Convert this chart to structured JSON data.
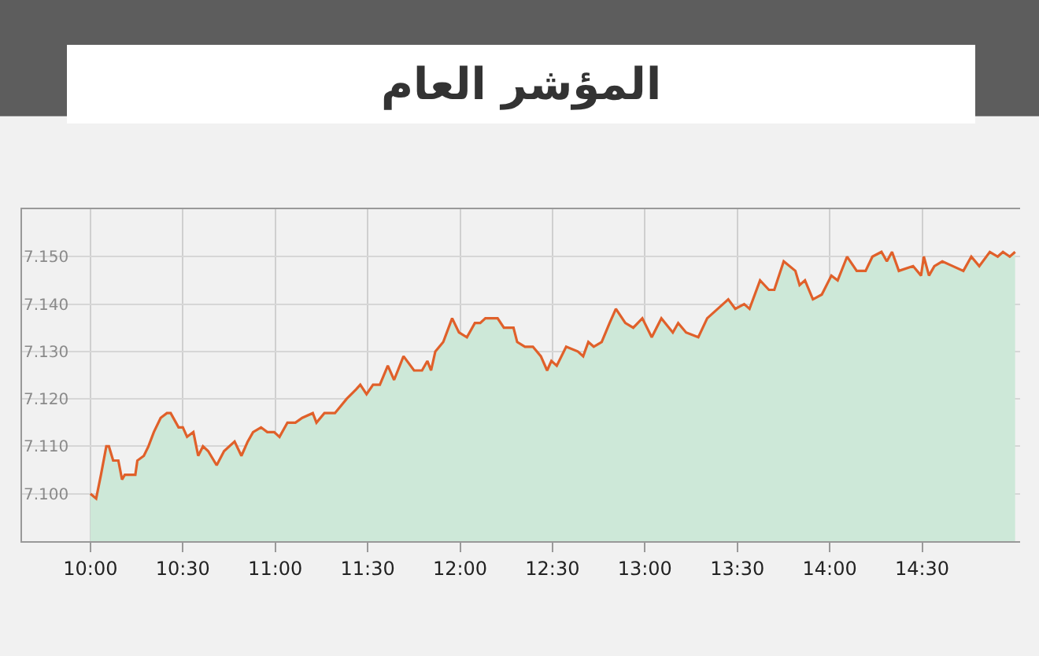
{
  "chart_data": {
    "type": "area",
    "title": "المؤشر العام",
    "x": [
      10.0,
      10.031,
      10.057,
      10.086,
      10.1,
      10.123,
      10.151,
      10.171,
      10.186,
      10.223,
      10.243,
      10.254,
      10.289,
      10.314,
      10.343,
      10.38,
      10.414,
      10.434,
      10.477,
      10.5,
      10.523,
      10.557,
      10.583,
      10.609,
      10.637,
      10.683,
      10.723,
      10.78,
      10.817,
      10.851,
      10.88,
      10.923,
      10.957,
      10.994,
      11.023,
      11.066,
      11.109,
      11.146,
      11.203,
      11.223,
      11.266,
      11.323,
      11.386,
      11.437,
      11.46,
      11.494,
      11.529,
      11.566,
      11.609,
      11.643,
      11.694,
      11.751,
      11.794,
      11.823,
      11.843,
      11.866,
      11.909,
      11.957,
      11.994,
      12.037,
      12.08,
      12.109,
      12.137,
      12.166,
      12.203,
      12.237,
      12.289,
      12.309,
      12.351,
      12.394,
      12.437,
      12.471,
      12.494,
      12.523,
      12.574,
      12.637,
      12.666,
      12.694,
      12.723,
      12.766,
      12.809,
      12.843,
      12.894,
      12.937,
      12.986,
      13.037,
      13.089,
      13.151,
      13.18,
      13.223,
      13.289,
      13.337,
      13.394,
      13.451,
      13.489,
      13.537,
      13.566,
      13.623,
      13.671,
      13.7,
      13.751,
      13.814,
      13.837,
      13.866,
      13.909,
      13.957,
      14.009,
      14.043,
      14.094,
      14.146,
      14.194,
      14.231,
      14.28,
      14.309,
      14.337,
      14.374,
      14.451,
      14.494,
      14.509,
      14.537,
      14.566,
      14.609,
      14.666,
      14.723,
      14.766,
      14.809,
      14.866,
      14.909,
      14.937,
      14.974,
      15.003
    ],
    "series": [
      {
        "color": "#e0602a",
        "values": [
          7100,
          7099,
          7104,
          7110,
          7110,
          7107,
          7107,
          7103,
          7104,
          7104,
          7104,
          7107,
          7108,
          7110,
          7113,
          7116,
          7117,
          7117,
          7114,
          7114,
          7112,
          7113,
          7108,
          7110,
          7109,
          7106,
          7109,
          7111,
          7108,
          7111,
          7113,
          7114,
          7113,
          7113,
          7112,
          7115,
          7115,
          7116,
          7117,
          7115,
          7117,
          7117,
          7120,
          7122,
          7123,
          7121,
          7123,
          7123,
          7127,
          7124,
          7129,
          7126,
          7126,
          7128,
          7126,
          7130,
          7132,
          7137,
          7134,
          7133,
          7136,
          7136,
          7137,
          7137,
          7137,
          7135,
          7135,
          7132,
          7131,
          7131,
          7129,
          7126,
          7128,
          7127,
          7131,
          7130,
          7129,
          7132,
          7131,
          7132,
          7136,
          7139,
          7136,
          7135,
          7137,
          7133,
          7137,
          7134,
          7136,
          7134,
          7133,
          7137,
          7139,
          7141,
          7139,
          7140,
          7139,
          7145,
          7143,
          7143,
          7149,
          7147,
          7144,
          7145,
          7141,
          7142,
          7146,
          7145,
          7150,
          7147,
          7147,
          7150,
          7151,
          7149,
          7151,
          7147,
          7148,
          7146,
          7150,
          7146,
          7148,
          7149,
          7148,
          7147,
          7150,
          7148,
          7151,
          7150,
          7151,
          7150,
          7151
        ]
      }
    ],
    "xlim": [
      9.63,
      15.03
    ],
    "ylim": [
      7090,
      7160
    ],
    "xticks": [
      {
        "value": 10,
        "label": "10:00"
      },
      {
        "value": 10.5,
        "label": "10:30"
      },
      {
        "value": 11,
        "label": "11:00"
      },
      {
        "value": 11.5,
        "label": "11:30"
      },
      {
        "value": 12,
        "label": "12:00"
      },
      {
        "value": 12.5,
        "label": "12:30"
      },
      {
        "value": 13,
        "label": "13:00"
      },
      {
        "value": 13.5,
        "label": "13:30"
      },
      {
        "value": 14,
        "label": "14:00"
      },
      {
        "value": 14.5,
        "label": "14:30"
      }
    ],
    "yticks": [
      {
        "value": 7100,
        "label": "7.100"
      },
      {
        "value": 7110,
        "label": "7.110"
      },
      {
        "value": 7120,
        "label": "7.120"
      },
      {
        "value": 7130,
        "label": "7.130"
      },
      {
        "value": 7140,
        "label": "7.140"
      },
      {
        "value": 7150,
        "label": "7.150"
      }
    ],
    "grid": true,
    "marker": "none",
    "line_style": "solid"
  }
}
